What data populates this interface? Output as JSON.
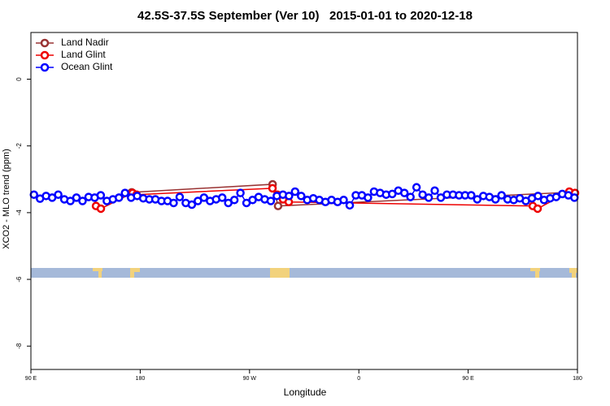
{
  "chart_data": {
    "type": "line",
    "title": "42.5S-37.5S September (Ver 10)   2015-01-01 to 2020-12-18",
    "x_label": "Longitude",
    "y_label": "XCO2 - MLO trend (ppm)",
    "xlim": [
      90,
      540
    ],
    "xticks": [
      {
        "value": 90,
        "label": "90 E"
      },
      {
        "value": 180,
        "label": "180"
      },
      {
        "value": 270,
        "label": "90 W"
      },
      {
        "value": 360,
        "label": "0"
      },
      {
        "value": 450,
        "label": "90 E"
      },
      {
        "value": 540,
        "label": "180"
      }
    ],
    "ylim": [
      -8.7,
      1.4
    ],
    "yticks": [
      0,
      -2,
      -4,
      -6,
      -8
    ],
    "legend": "top-left",
    "series": [
      {
        "name": "Land Nadir",
        "color": "#993333",
        "x": [
          173,
          289,
          293.5,
          533.3
        ],
        "values": [
          -3.39,
          -3.15,
          -3.8,
          -3.39
        ]
      },
      {
        "name": "Land Glint",
        "color": "#ee0000",
        "x": [
          143.6,
          147.6,
          173.7,
          177,
          288.9,
          292.9,
          297.6,
          302.3,
          503.2,
          507.2,
          533.3,
          538
        ],
        "values": [
          -3.8,
          -3.88,
          -3.41,
          -3.46,
          -3.27,
          -3.46,
          -3.6,
          -3.68,
          -3.8,
          -3.88,
          -3.37,
          -3.41
        ]
      },
      {
        "name": "Ocean Glint",
        "color": "#0000ff",
        "x": [
          92.5,
          97.5,
          102.5,
          107.5,
          112.5,
          117.5,
          122.5,
          127.5,
          132.5,
          137.5,
          142.5,
          147.5,
          152.5,
          157.5,
          162.5,
          167.5,
          172.5,
          177.5,
          182.5,
          187.5,
          192.5,
          197.5,
          202.5,
          207.5,
          212.5,
          217.5,
          222.5,
          227.5,
          232.5,
          237.5,
          242.5,
          247.5,
          252.5,
          257.5,
          262.5,
          267.5,
          272.5,
          277.5,
          282.5,
          287.5,
          292.5,
          297.5,
          302.5,
          307.5,
          312.5,
          317.5,
          322.5,
          327.5,
          332.5,
          337.5,
          342.5,
          347.5,
          352.5,
          357.5,
          362.5,
          367.5,
          372.5,
          377.5,
          382.5,
          387.5,
          392.5,
          397.5,
          402.5,
          407.5,
          412.5,
          417.5,
          422.5,
          427.5,
          432.5,
          437.5,
          442.5,
          447.5,
          452.5,
          457.5,
          462.5,
          467.5,
          472.5,
          477.5,
          482.5,
          487.5,
          492.5,
          497.5,
          502.5,
          507.5,
          512.5,
          517.5,
          522.5,
          527.5,
          532.5,
          537.5
        ],
        "values": [
          -3.46,
          -3.58,
          -3.5,
          -3.55,
          -3.46,
          -3.6,
          -3.65,
          -3.55,
          -3.65,
          -3.53,
          -3.55,
          -3.48,
          -3.65,
          -3.6,
          -3.55,
          -3.41,
          -3.55,
          -3.5,
          -3.57,
          -3.6,
          -3.6,
          -3.65,
          -3.65,
          -3.71,
          -3.53,
          -3.71,
          -3.76,
          -3.65,
          -3.55,
          -3.65,
          -3.6,
          -3.55,
          -3.71,
          -3.62,
          -3.41,
          -3.71,
          -3.62,
          -3.53,
          -3.6,
          -3.65,
          -3.5,
          -3.46,
          -3.5,
          -3.37,
          -3.5,
          -3.62,
          -3.57,
          -3.62,
          -3.68,
          -3.62,
          -3.68,
          -3.62,
          -3.78,
          -3.48,
          -3.48,
          -3.55,
          -3.37,
          -3.41,
          -3.46,
          -3.44,
          -3.34,
          -3.41,
          -3.53,
          -3.24,
          -3.46,
          -3.55,
          -3.34,
          -3.55,
          -3.46,
          -3.46,
          -3.48,
          -3.48,
          -3.48,
          -3.6,
          -3.5,
          -3.53,
          -3.6,
          -3.48,
          -3.6,
          -3.62,
          -3.57,
          -3.65,
          -3.57,
          -3.5,
          -3.62,
          -3.57,
          -3.53,
          -3.44,
          -3.48,
          -3.55
        ]
      }
    ]
  }
}
